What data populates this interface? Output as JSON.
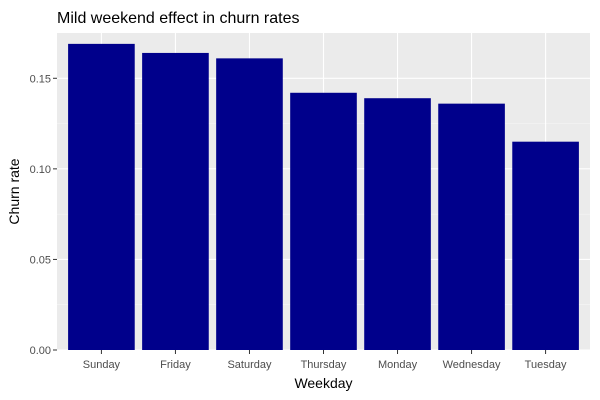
{
  "chart_data": {
    "type": "bar",
    "title": "Mild weekend effect in churn rates",
    "xlabel": "Weekday",
    "ylabel": "Churn rate",
    "categories": [
      "Sunday",
      "Friday",
      "Saturday",
      "Thursday",
      "Monday",
      "Wednesday",
      "Tuesday"
    ],
    "values": [
      0.169,
      0.164,
      0.161,
      0.142,
      0.139,
      0.136,
      0.115
    ],
    "ylim": [
      0,
      0.175
    ],
    "yticks": [
      0.0,
      0.05,
      0.1,
      0.15
    ],
    "ytick_labels": [
      "0.00",
      "0.05",
      "0.10",
      "0.15"
    ],
    "grid": true,
    "legend": "none",
    "colors": {
      "bar": "#00008B",
      "panel_background": "#EBEBEB",
      "grid_major": "#FFFFFF",
      "grid_minor": "#F5F5F5",
      "tick_mark": "#333333"
    }
  }
}
